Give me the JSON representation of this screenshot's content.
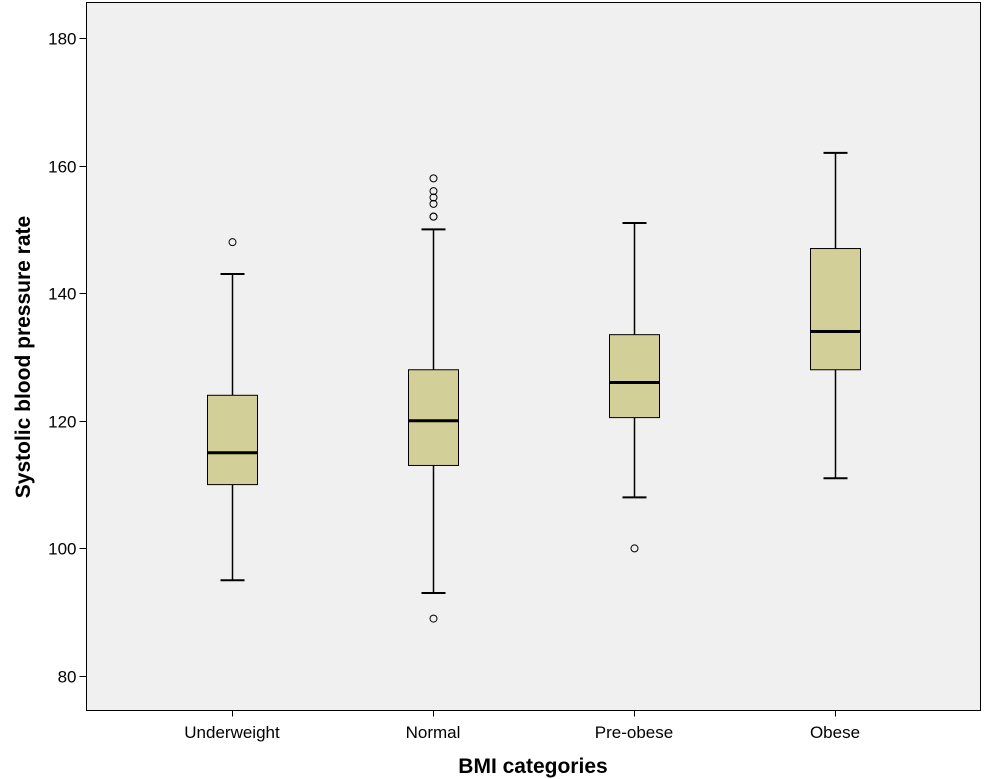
{
  "chart_data": {
    "type": "boxplot",
    "title": "",
    "xlabel": "BMI categories",
    "ylabel": "Systolic blood pressure rate",
    "ylim": [
      74.5,
      186
    ],
    "yticks": [
      80,
      100,
      120,
      140,
      160,
      180
    ],
    "grid": false,
    "legend": "none",
    "colors": {
      "plot_bg": "#f0f0f0",
      "box_fill": "#d3cf99",
      "stroke": "#000000"
    },
    "categories": [
      "Underweight",
      "Normal",
      "Pre-obese",
      "Obese"
    ],
    "boxes": [
      {
        "category": "Underweight",
        "whisker_low": 95,
        "q1": 110,
        "median": 115,
        "q3": 124,
        "whisker_high": 143,
        "outliers": [
          148
        ]
      },
      {
        "category": "Normal",
        "whisker_low": 93,
        "q1": 113,
        "median": 120,
        "q3": 128,
        "whisker_high": 150,
        "outliers": [
          89,
          152,
          152,
          154,
          155,
          156,
          158
        ]
      },
      {
        "category": "Pre-obese",
        "whisker_low": 108,
        "q1": 120.5,
        "median": 126,
        "q3": 133.5,
        "whisker_high": 151,
        "outliers": [
          100
        ]
      },
      {
        "category": "Obese",
        "whisker_low": 111,
        "q1": 128,
        "median": 134,
        "q3": 147,
        "whisker_high": 162,
        "outliers": []
      }
    ]
  }
}
